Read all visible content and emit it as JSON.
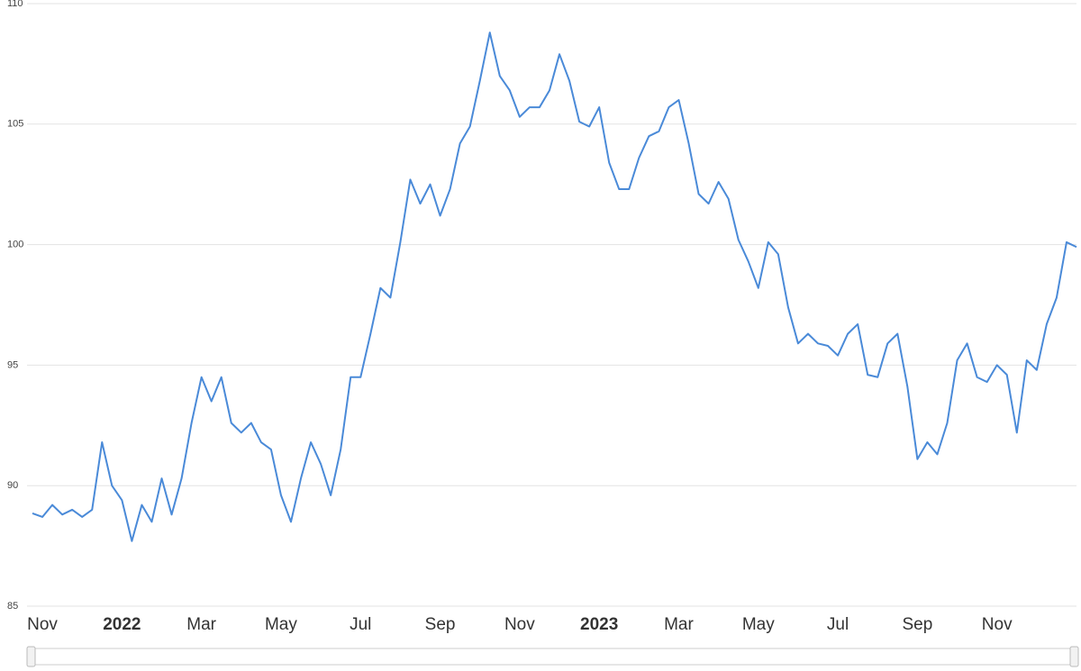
{
  "chart_data": {
    "type": "line",
    "categories": [
      null,
      "Nov",
      null,
      null,
      null,
      null,
      null,
      null,
      null,
      "2022",
      null,
      null,
      null,
      null,
      null,
      null,
      null,
      "Mar",
      null,
      null,
      null,
      null,
      null,
      null,
      null,
      "May",
      null,
      null,
      null,
      null,
      null,
      null,
      null,
      "Jul",
      null,
      null,
      null,
      null,
      null,
      null,
      null,
      "Sep",
      null,
      null,
      null,
      null,
      null,
      null,
      null,
      "Nov",
      null,
      null,
      null,
      null,
      null,
      null,
      null,
      "2023",
      null,
      null,
      null,
      null,
      null,
      null,
      null,
      "Mar",
      null,
      null,
      null,
      null,
      null,
      null,
      null,
      "May",
      null,
      null,
      null,
      null,
      null,
      null,
      null,
      "Jul",
      null,
      null,
      null,
      null,
      null,
      null,
      null,
      "Sep",
      null,
      null,
      null,
      null,
      null,
      null,
      null,
      "Nov",
      null,
      null,
      null,
      null,
      null,
      null,
      null,
      null
    ],
    "series": [
      {
        "color": "#4a8ad8",
        "values": [
          88.85,
          88.7,
          89.2,
          88.8,
          89.0,
          88.7,
          89.0,
          91.8,
          90.0,
          89.4,
          87.7,
          89.2,
          88.5,
          90.3,
          88.8,
          90.3,
          92.6,
          94.5,
          93.5,
          94.5,
          92.6,
          92.2,
          92.6,
          91.8,
          91.5,
          89.6,
          88.5,
          90.3,
          91.8,
          90.9,
          89.6,
          91.5,
          94.5,
          94.5,
          96.3,
          98.2,
          97.8,
          100.1,
          102.7,
          101.7,
          102.5,
          101.2,
          102.3,
          104.2,
          104.9,
          106.8,
          108.8,
          107.0,
          106.4,
          105.3,
          105.7,
          105.7,
          106.4,
          107.9,
          106.8,
          105.1,
          104.9,
          105.7,
          103.4,
          102.3,
          102.3,
          103.6,
          104.5,
          104.7,
          105.7,
          106.0,
          104.2,
          102.1,
          101.7,
          102.6,
          101.9,
          100.2,
          99.3,
          98.2,
          100.1,
          99.6,
          97.4,
          95.9,
          96.3,
          95.9,
          95.8,
          95.4,
          96.3,
          96.7,
          94.6,
          94.5,
          95.9,
          96.3,
          94.1,
          91.1,
          91.8,
          91.3,
          92.6,
          95.2,
          95.9,
          94.5,
          94.3,
          95.0,
          94.6,
          92.2,
          95.2,
          94.8,
          96.7,
          97.8,
          100.1,
          99.9
        ]
      }
    ],
    "ylim": [
      85,
      110
    ],
    "yticks": [
      85,
      90,
      95,
      100,
      105,
      110
    ],
    "grid": true
  }
}
